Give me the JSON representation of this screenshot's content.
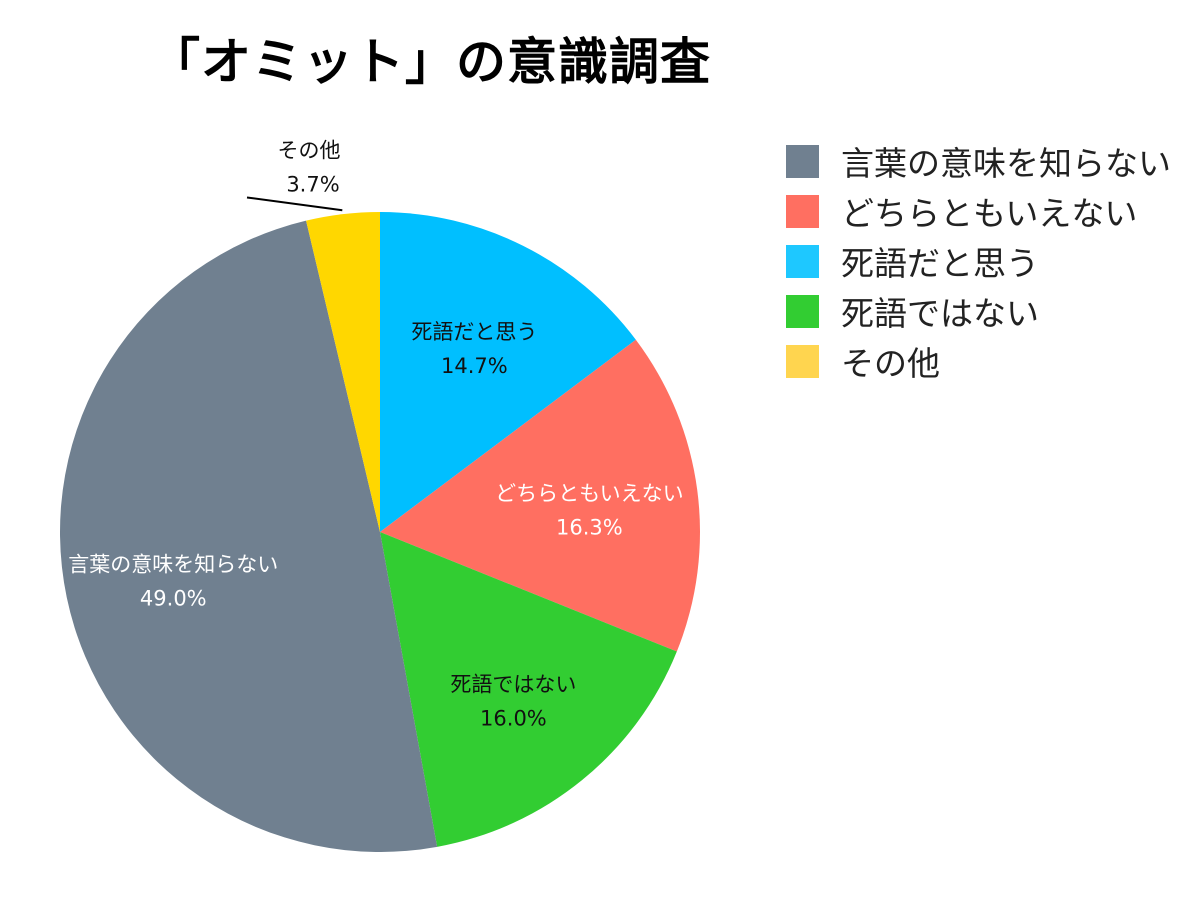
{
  "chart_data": {
    "type": "pie",
    "title": "「オミット」の意識調査",
    "unit": "%",
    "slices": [
      {
        "label": "死語だと思う",
        "value": 14.7,
        "pct_label": "14.7%",
        "color": "#00BFFF",
        "label_color": "#111111"
      },
      {
        "label": "どちらともいえない",
        "value": 16.3,
        "pct_label": "16.3%",
        "color": "#FF6F61",
        "label_color": "#ffffff"
      },
      {
        "label": "死語ではない",
        "value": 16.0,
        "pct_label": "16.0%",
        "color": "#32CD32",
        "label_color": "#111111"
      },
      {
        "label": "言葉の意味を知らない",
        "value": 49.0,
        "pct_label": "49.0%",
        "color": "#708090",
        "label_color": "#ffffff"
      },
      {
        "label": "その他",
        "value": 3.7,
        "pct_label": "3.7%",
        "color": "#FFD700",
        "label_color": "#111111"
      }
    ],
    "legend": {
      "placement": "top-right",
      "entries": [
        {
          "label": "言葉の意味を知らない",
          "color": "#708090"
        },
        {
          "label": "どちらともいえない",
          "color": "#FF6F61"
        },
        {
          "label": "死語だと思う",
          "color": "#1EC8FF"
        },
        {
          "label": "死語ではない",
          "color": "#32CD32"
        },
        {
          "label": "その他",
          "color": "#FFD54F"
        }
      ]
    }
  }
}
